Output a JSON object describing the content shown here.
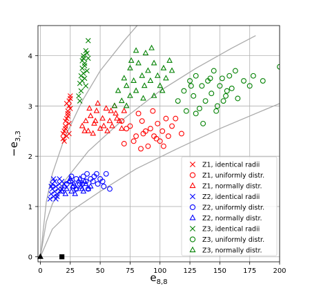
{
  "chart_data": {
    "type": "scatter",
    "xlabel": "e_{8,8}",
    "ylabel": "−e_{3,3}",
    "xlim": [
      -2,
      200
    ],
    "ylim": [
      -0.1,
      4.6
    ],
    "xticks": [
      "0",
      "25",
      "50",
      "75",
      "100",
      "125",
      "150",
      "175",
      "200"
    ],
    "yticks": [
      "0",
      "1",
      "2",
      "3",
      "4"
    ],
    "grid": true,
    "legend_position": "lower-right",
    "reference_curves": [
      {
        "x": [
          0,
          5,
          10,
          20,
          35,
          50,
          70,
          90,
          112,
          125
        ],
        "y": [
          0,
          1.1,
          1.65,
          2.35,
          3.1,
          3.7,
          4.3,
          4.85,
          5.4,
          5.7
        ]
      },
      {
        "x": [
          0,
          5,
          10,
          20,
          40,
          70,
          100,
          130,
          160,
          180
        ],
        "y": [
          0,
          0.7,
          1.05,
          1.5,
          2.1,
          2.75,
          3.3,
          3.75,
          4.15,
          4.4
        ]
      },
      {
        "x": [
          0,
          10,
          25,
          50,
          80,
          110,
          150,
          200
        ],
        "y": [
          0,
          0.55,
          0.9,
          1.3,
          1.75,
          2.1,
          2.55,
          3.05
        ]
      }
    ],
    "special_points": [
      {
        "marker": "triangle-filled",
        "x": 0,
        "y": 0
      },
      {
        "marker": "square-filled",
        "x": 18,
        "y": 0
      }
    ],
    "series": [
      {
        "name": "Z1, identical radii",
        "marker": "x",
        "color": "#ff0000",
        "points": [
          [
            19,
            2.35
          ],
          [
            20,
            2.5
          ],
          [
            21,
            2.6
          ],
          [
            22,
            2.75
          ],
          [
            23,
            2.85
          ],
          [
            24,
            3.0
          ],
          [
            24,
            3.1
          ],
          [
            25,
            3.2
          ],
          [
            21,
            2.7
          ],
          [
            22,
            2.4
          ],
          [
            23,
            2.9
          ],
          [
            25,
            2.95
          ],
          [
            20,
            2.3
          ],
          [
            24,
            2.65
          ],
          [
            22,
            3.05
          ],
          [
            25,
            3.15
          ],
          [
            21,
            2.55
          ],
          [
            23,
            2.8
          ],
          [
            19,
            2.45
          ],
          [
            24,
            2.45
          ]
        ]
      },
      {
        "name": "Z1, uniformly distr.",
        "marker": "circle",
        "color": "#ff0000",
        "points": [
          [
            70,
            2.25
          ],
          [
            75,
            2.6
          ],
          [
            80,
            2.4
          ],
          [
            85,
            2.7
          ],
          [
            88,
            2.5
          ],
          [
            90,
            2.2
          ],
          [
            92,
            2.55
          ],
          [
            95,
            2.4
          ],
          [
            98,
            2.65
          ],
          [
            100,
            2.3
          ],
          [
            102,
            2.5
          ],
          [
            105,
            2.75
          ],
          [
            82,
            2.85
          ],
          [
            78,
            2.3
          ],
          [
            86,
            2.45
          ],
          [
            94,
            2.9
          ],
          [
            97,
            2.35
          ],
          [
            103,
            2.2
          ],
          [
            110,
            2.6
          ],
          [
            113,
            2.75
          ],
          [
            118,
            2.45
          ],
          [
            72,
            2.55
          ],
          [
            68,
            2.7
          ],
          [
            84,
            2.15
          ],
          [
            107,
            2.4
          ]
        ]
      },
      {
        "name": "Z1, normally distr.",
        "marker": "triangle",
        "color": "#ff0000",
        "points": [
          [
            35,
            2.6
          ],
          [
            38,
            2.7
          ],
          [
            40,
            2.5
          ],
          [
            42,
            2.8
          ],
          [
            45,
            2.65
          ],
          [
            47,
            2.9
          ],
          [
            50,
            2.55
          ],
          [
            52,
            2.75
          ],
          [
            55,
            2.95
          ],
          [
            58,
            2.7
          ],
          [
            60,
            2.6
          ],
          [
            63,
            2.85
          ],
          [
            66,
            2.7
          ],
          [
            70,
            2.9
          ],
          [
            44,
            2.45
          ],
          [
            48,
            3.05
          ],
          [
            56,
            2.5
          ],
          [
            62,
            3.0
          ],
          [
            68,
            2.55
          ],
          [
            41,
            2.95
          ],
          [
            53,
            2.6
          ],
          [
            59,
            2.9
          ],
          [
            46,
            2.7
          ],
          [
            64,
            2.75
          ],
          [
            37,
            2.5
          ]
        ]
      },
      {
        "name": "Z2, identical radii",
        "marker": "x",
        "color": "#0000ff",
        "points": [
          [
            8,
            1.15
          ],
          [
            9,
            1.25
          ],
          [
            10,
            1.35
          ],
          [
            10,
            1.45
          ],
          [
            11,
            1.2
          ],
          [
            12,
            1.3
          ],
          [
            12,
            1.5
          ],
          [
            13,
            1.4
          ],
          [
            14,
            1.25
          ],
          [
            15,
            1.35
          ],
          [
            16,
            1.45
          ],
          [
            17,
            1.3
          ],
          [
            18,
            1.5
          ],
          [
            11,
            1.55
          ],
          [
            9,
            1.4
          ],
          [
            14,
            1.2
          ],
          [
            16,
            1.55
          ],
          [
            13,
            1.15
          ],
          [
            18,
            1.35
          ],
          [
            20,
            1.45
          ]
        ]
      },
      {
        "name": "Z2, uniformly distr.",
        "marker": "circle",
        "color": "#0000ff",
        "points": [
          [
            22,
            1.45
          ],
          [
            25,
            1.5
          ],
          [
            28,
            1.4
          ],
          [
            30,
            1.55
          ],
          [
            33,
            1.45
          ],
          [
            36,
            1.6
          ],
          [
            38,
            1.5
          ],
          [
            40,
            1.35
          ],
          [
            42,
            1.55
          ],
          [
            45,
            1.6
          ],
          [
            48,
            1.45
          ],
          [
            50,
            1.55
          ],
          [
            52,
            1.5
          ],
          [
            55,
            1.65
          ],
          [
            58,
            1.35
          ],
          [
            35,
            1.45
          ],
          [
            44,
            1.5
          ],
          [
            47,
            1.65
          ],
          [
            30,
            1.35
          ],
          [
            26,
            1.6
          ],
          [
            39,
            1.65
          ],
          [
            53,
            1.4
          ]
        ]
      },
      {
        "name": "Z2, normally distr.",
        "marker": "triangle",
        "color": "#0000ff",
        "points": [
          [
            18,
            1.3
          ],
          [
            20,
            1.4
          ],
          [
            22,
            1.35
          ],
          [
            24,
            1.5
          ],
          [
            26,
            1.3
          ],
          [
            28,
            1.45
          ],
          [
            30,
            1.35
          ],
          [
            32,
            1.5
          ],
          [
            34,
            1.4
          ],
          [
            36,
            1.3
          ],
          [
            38,
            1.45
          ],
          [
            40,
            1.35
          ],
          [
            25,
            1.55
          ],
          [
            29,
            1.25
          ],
          [
            33,
            1.55
          ],
          [
            37,
            1.5
          ],
          [
            21,
            1.25
          ],
          [
            35,
            1.35
          ],
          [
            42,
            1.4
          ],
          [
            27,
            1.4
          ]
        ]
      },
      {
        "name": "Z3, identical radii",
        "marker": "x",
        "color": "#008000",
        "points": [
          [
            32,
            3.2
          ],
          [
            33,
            3.45
          ],
          [
            34,
            3.6
          ],
          [
            35,
            3.75
          ],
          [
            35,
            3.9
          ],
          [
            36,
            4.0
          ],
          [
            37,
            3.55
          ],
          [
            37,
            3.85
          ],
          [
            38,
            4.1
          ],
          [
            39,
            3.7
          ],
          [
            40,
            3.95
          ],
          [
            40,
            4.3
          ],
          [
            34,
            3.3
          ],
          [
            36,
            3.65
          ],
          [
            38,
            3.4
          ],
          [
            33,
            3.1
          ],
          [
            39,
            4.05
          ],
          [
            35,
            3.5
          ],
          [
            37,
            3.8
          ],
          [
            36,
            3.95
          ]
        ]
      },
      {
        "name": "Z3, uniformly distr.",
        "marker": "circle",
        "color": "#008000",
        "points": [
          [
            115,
            3.1
          ],
          [
            120,
            3.3
          ],
          [
            125,
            3.5
          ],
          [
            128,
            3.2
          ],
          [
            130,
            3.6
          ],
          [
            133,
            2.95
          ],
          [
            135,
            3.4
          ],
          [
            138,
            3.1
          ],
          [
            140,
            3.5
          ],
          [
            143,
            3.25
          ],
          [
            145,
            3.7
          ],
          [
            148,
            3.0
          ],
          [
            150,
            3.4
          ],
          [
            152,
            3.55
          ],
          [
            155,
            3.2
          ],
          [
            158,
            3.6
          ],
          [
            160,
            3.35
          ],
          [
            163,
            3.7
          ],
          [
            165,
            3.15
          ],
          [
            170,
            3.5
          ],
          [
            175,
            3.4
          ],
          [
            178,
            3.6
          ],
          [
            186,
            3.5
          ],
          [
            200,
            3.78
          ],
          [
            122,
            2.9
          ],
          [
            130,
            2.85
          ],
          [
            136,
            2.65
          ],
          [
            147,
            2.9
          ],
          [
            142,
            3.55
          ],
          [
            153,
            3.1
          ],
          [
            126,
            3.4
          ],
          [
            156,
            3.3
          ]
        ]
      },
      {
        "name": "Z3, normally distr.",
        "marker": "triangle",
        "color": "#008000",
        "points": [
          [
            62,
            3.0
          ],
          [
            65,
            3.3
          ],
          [
            68,
            3.1
          ],
          [
            70,
            3.55
          ],
          [
            72,
            3.4
          ],
          [
            75,
            3.2
          ],
          [
            75,
            3.75
          ],
          [
            78,
            3.5
          ],
          [
            80,
            3.3
          ],
          [
            82,
            3.85
          ],
          [
            85,
            3.6
          ],
          [
            87,
            3.4
          ],
          [
            88,
            4.05
          ],
          [
            90,
            3.7
          ],
          [
            92,
            3.5
          ],
          [
            95,
            3.85
          ],
          [
            98,
            3.6
          ],
          [
            100,
            3.4
          ],
          [
            103,
            3.75
          ],
          [
            105,
            3.55
          ],
          [
            108,
            3.9
          ],
          [
            110,
            3.7
          ],
          [
            80,
            4.1
          ],
          [
            95,
            3.2
          ],
          [
            72,
            3.0
          ],
          [
            102,
            3.3
          ],
          [
            86,
            3.15
          ],
          [
            76,
            3.9
          ],
          [
            93,
            4.15
          ]
        ]
      }
    ]
  }
}
